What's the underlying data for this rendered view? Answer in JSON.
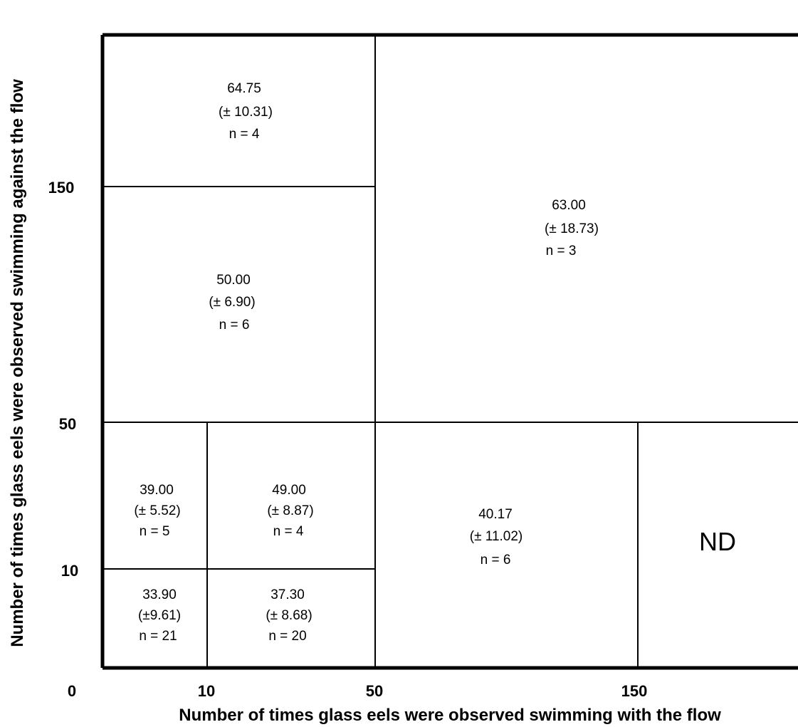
{
  "chart_data": {
    "type": "table",
    "xlabel": "Number of times glass eels were observed swimming with the flow",
    "ylabel": "Number of times glass eels were observed swimming against the flow",
    "x_ticks": [
      "0",
      "10",
      "50",
      "150"
    ],
    "y_ticks": [
      "0",
      "10",
      "50",
      "150"
    ],
    "cells": [
      {
        "id": "x0-10_y0-10",
        "x": [
          "0",
          "10"
        ],
        "y": [
          "0",
          "10"
        ],
        "mean": "33.90",
        "sd": "(±9.61)",
        "n": "n = 21"
      },
      {
        "id": "x10-50_y0-10",
        "x": [
          "10",
          "50"
        ],
        "y": [
          "0",
          "10"
        ],
        "mean": "37.30",
        "sd": "(± 8.68)",
        "n": "n = 20"
      },
      {
        "id": "x0-10_y10-50",
        "x": [
          "0",
          "10"
        ],
        "y": [
          "10",
          "50"
        ],
        "mean": "39.00",
        "sd": "(± 5.52)",
        "n": "n = 5"
      },
      {
        "id": "x10-50_y10-50",
        "x": [
          "10",
          "50"
        ],
        "y": [
          "10",
          "50"
        ],
        "mean": "49.00",
        "sd": "(± 8.87)",
        "n": "n = 4"
      },
      {
        "id": "x0-50_y50-150",
        "x": [
          "0",
          "50"
        ],
        "y": [
          "50",
          "150"
        ],
        "mean": "50.00",
        "sd": "(± 6.90)",
        "n": "n = 6"
      },
      {
        "id": "x0-50_y150plus",
        "x": [
          "0",
          "50"
        ],
        "y": [
          "150",
          ""
        ],
        "mean": "64.75",
        "sd": "(± 10.31)",
        "n": "n = 4"
      },
      {
        "id": "x50-150_y0-50",
        "x": [
          "50",
          "150"
        ],
        "y": [
          "0",
          "50"
        ],
        "mean": "40.17",
        "sd": "(± 11.02)",
        "n": "n = 6"
      },
      {
        "id": "x50plus_y50plus",
        "x": [
          "50",
          ""
        ],
        "y": [
          "50",
          ""
        ],
        "mean": "63.00",
        "sd": "(± 18.73)",
        "n": "n = 3"
      },
      {
        "id": "x150plus_y0-50",
        "x": [
          "150",
          ""
        ],
        "y": [
          "0",
          "50"
        ],
        "label": "ND"
      }
    ]
  }
}
